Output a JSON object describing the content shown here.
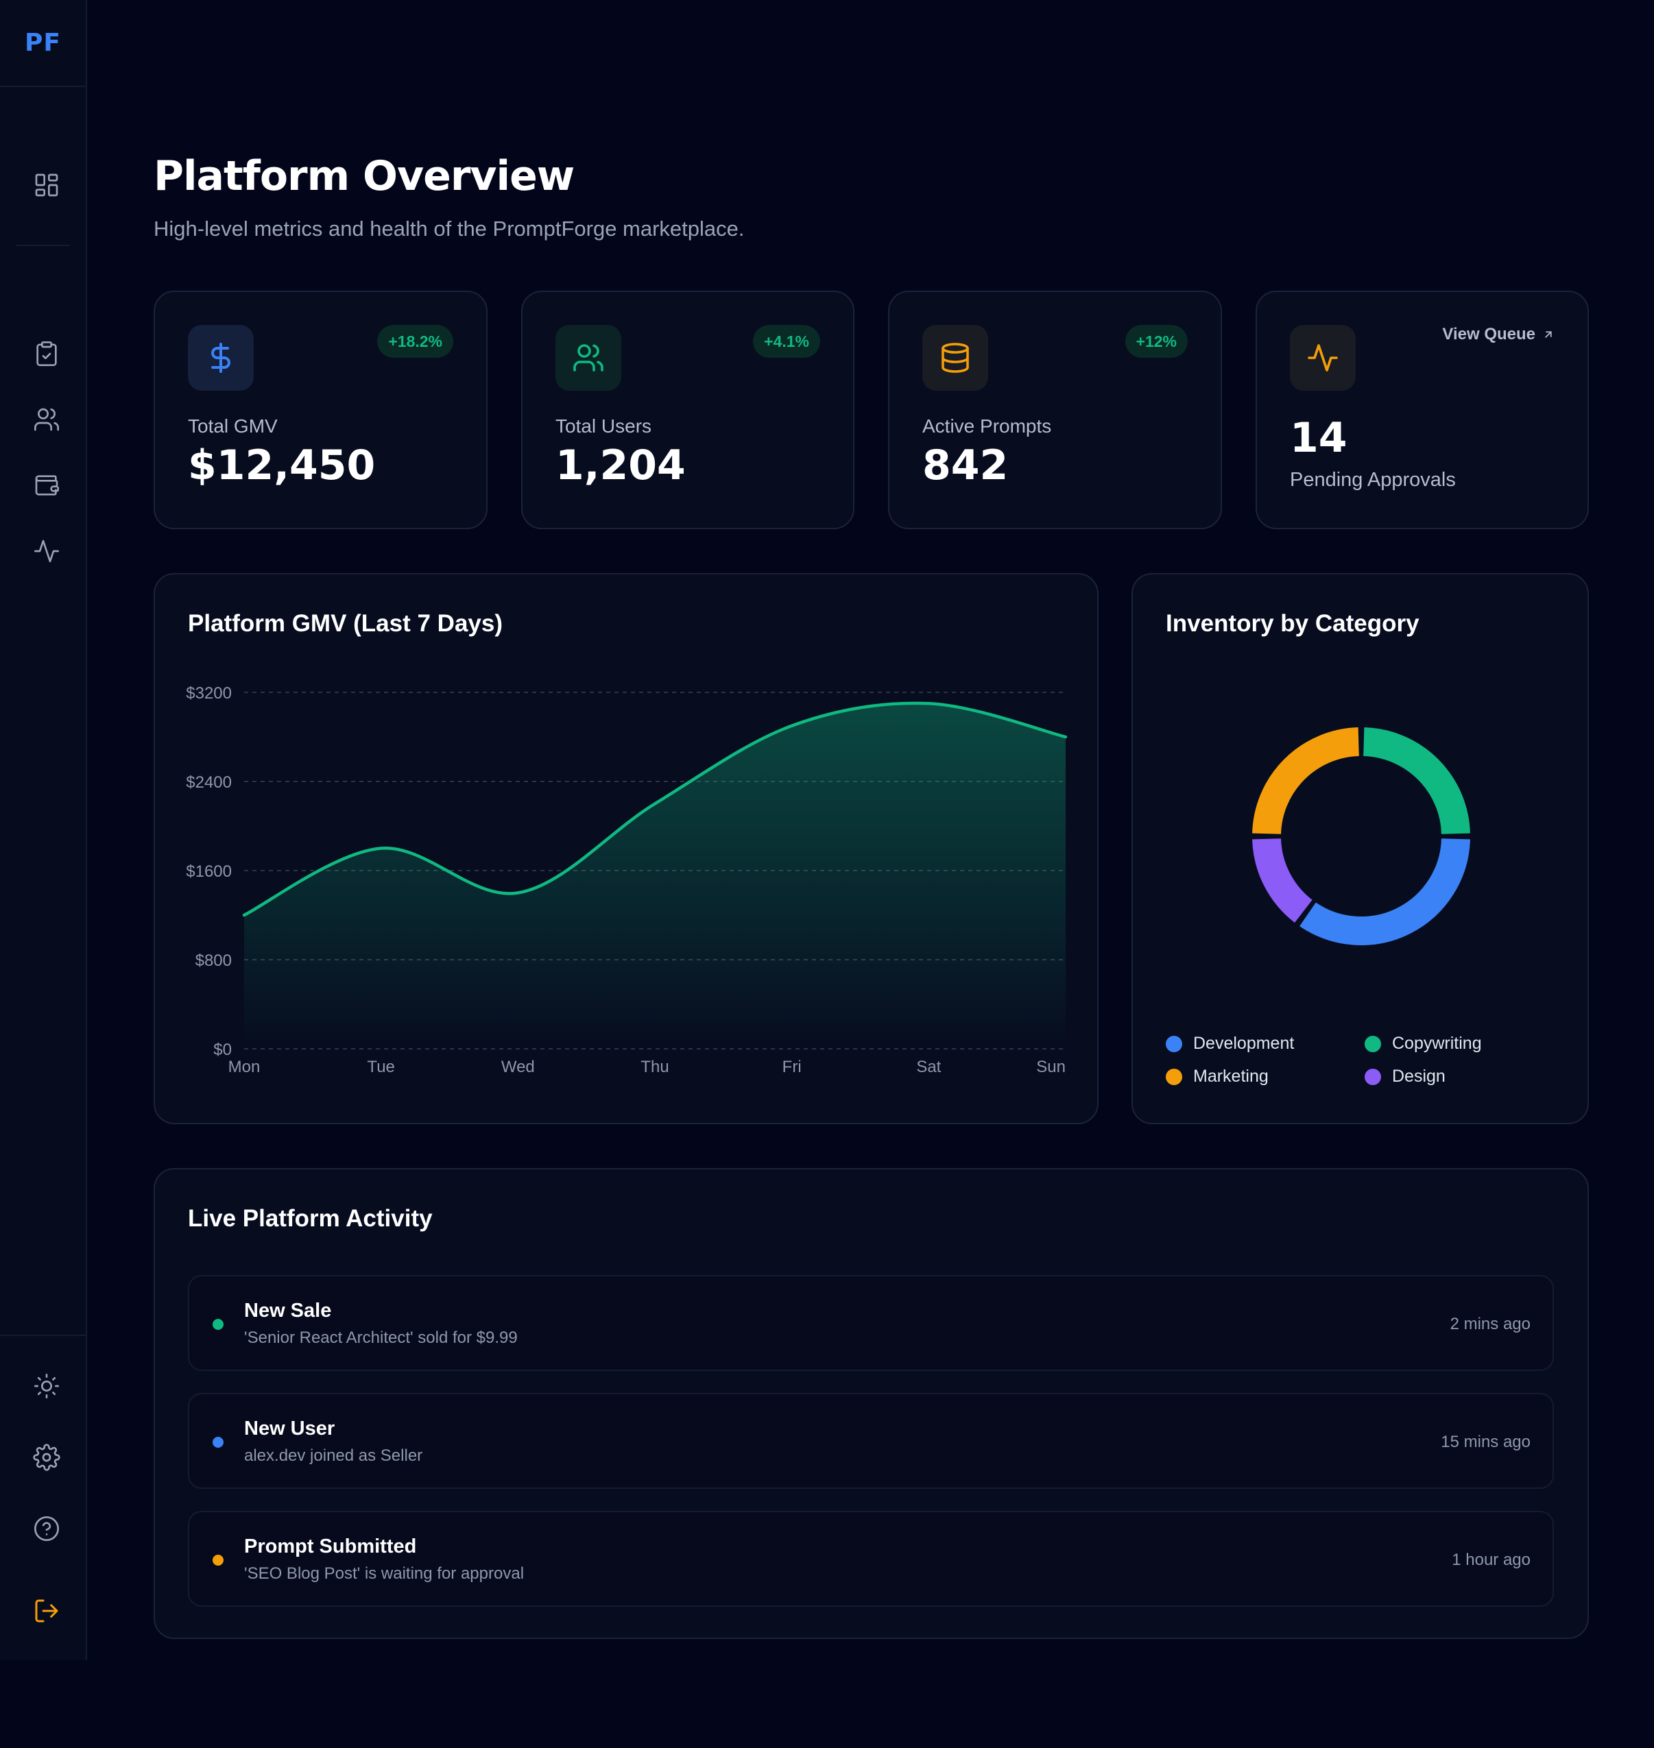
{
  "brand": {
    "logo": "PF"
  },
  "sidebar": {
    "top_icons": [
      "grid-icon"
    ],
    "nav_icons": [
      "clipboard-check-icon",
      "users-icon",
      "wallet-icon",
      "activity-icon"
    ],
    "bottom_icons": [
      "sun-icon",
      "gear-icon",
      "help-icon",
      "logout-icon"
    ]
  },
  "header": {
    "title": "Platform Overview",
    "subtitle": "High-level metrics and health of the PromptForge marketplace."
  },
  "stats": [
    {
      "label": "Total GMV",
      "value": "$12,450",
      "change": "+18.2%",
      "icon": "dollar-icon",
      "accent": "#3b82f6"
    },
    {
      "label": "Total Users",
      "value": "1,204",
      "change": "+4.1%",
      "icon": "users-icon",
      "accent": "#10b981"
    },
    {
      "label": "Active Prompts",
      "value": "842",
      "change": "+12%",
      "icon": "database-icon",
      "accent": "#f59e0b"
    }
  ],
  "pending": {
    "value": "14",
    "label": "Pending Approvals",
    "link": "View Queue",
    "icon": "activity-icon",
    "accent": "#f59e0b"
  },
  "gmv_chart": {
    "title": "Platform GMV (Last 7 Days)",
    "chart_data": {
      "type": "area",
      "categories": [
        "Mon",
        "Tue",
        "Wed",
        "Thu",
        "Fri",
        "Sat",
        "Sun"
      ],
      "values": [
        1200,
        1800,
        1400,
        2200,
        2900,
        3100,
        2800
      ],
      "y_ticks": [
        "$0",
        "$800",
        "$1600",
        "$2400",
        "$3200"
      ],
      "ylim": [
        0,
        3200
      ],
      "grid": true,
      "color": "#10b981"
    }
  },
  "inventory_chart": {
    "title": "Inventory by Category",
    "chart_data": {
      "type": "pie",
      "categories": [
        "Development",
        "Copywriting",
        "Marketing",
        "Design"
      ],
      "values": [
        35,
        25,
        25,
        15
      ],
      "colors": [
        "#3b82f6",
        "#10b981",
        "#f59e0b",
        "#8b5cf6"
      ],
      "legend": "bottom"
    }
  },
  "activity": {
    "title": "Live Platform Activity",
    "items": [
      {
        "title": "New Sale",
        "desc": "'Senior React Architect' sold for $9.99",
        "time": "2 mins ago",
        "color": "#10b981"
      },
      {
        "title": "New User",
        "desc": "alex.dev joined as Seller",
        "time": "15 mins ago",
        "color": "#3b82f6"
      },
      {
        "title": "Prompt Submitted",
        "desc": "'SEO Blog Post' is waiting for approval",
        "time": "1 hour ago",
        "color": "#f59e0b"
      }
    ]
  }
}
